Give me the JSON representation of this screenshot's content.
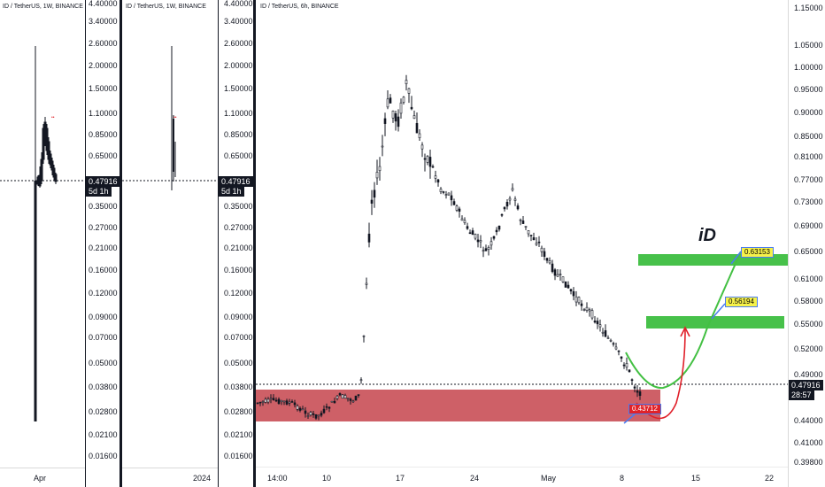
{
  "panes": [
    {
      "symbol": "ID / TetherUS, 1W, BINANCE",
      "price_badge": "0.47916",
      "countdown": "5d 1h",
      "axis": [
        "4.40000",
        "3.40000",
        "2.60000",
        "2.00000",
        "1.50000",
        "1.10000",
        "0.85000",
        "0.65000",
        "0.47916",
        "0.35000",
        "0.27000",
        "0.21000",
        "0.16000",
        "0.12000",
        "0.09000",
        "0.07000",
        "0.05000",
        "0.03800",
        "0.02800",
        "0.02100",
        "0.01600"
      ],
      "xlabels": [
        "Apr"
      ]
    },
    {
      "symbol": "ID / TetherUS, 1W, BINANCE",
      "price_badge": "0.47916",
      "countdown": "5d 1h",
      "axis": [
        "4.40000",
        "3.40000",
        "2.60000",
        "2.00000",
        "1.50000",
        "1.10000",
        "0.85000",
        "0.65000",
        "0.47916",
        "0.35000",
        "0.27000",
        "0.21000",
        "0.16000",
        "0.12000",
        "0.09000",
        "0.07000",
        "0.05000",
        "0.03800",
        "0.02800",
        "0.02100",
        "0.01600"
      ],
      "xlabels": [
        "2024"
      ]
    },
    {
      "symbol": "ID / TetherUS, 6h, BINANCE",
      "price_badge": "0.47916",
      "countdown": "28:57",
      "axis": [
        "1.15000",
        "1.05000",
        "1.00000",
        "0.95000",
        "0.90000",
        "0.85000",
        "0.81000",
        "0.77000",
        "0.73000",
        "0.69000",
        "0.65000",
        "0.61000",
        "0.58000",
        "0.55000",
        "0.52000",
        "0.49000",
        "0.47916",
        "0.44000",
        "0.41000",
        "0.39800"
      ],
      "left_axis": [
        "4.40000",
        "3.40000",
        "2.60000",
        "2.00000",
        "1.50000",
        "1.10000",
        "0.85000",
        "0.65000",
        "0.47916",
        "0.35000",
        "0.27000",
        "0.21000",
        "0.16000",
        "0.12000",
        "0.09000",
        "0.07000",
        "0.05000",
        "0.03800",
        "0.02800",
        "0.02100",
        "0.01600"
      ],
      "xlabels": [
        "14:00",
        "10",
        "17",
        "24",
        "May",
        "8",
        "15",
        "22"
      ]
    }
  ],
  "annotations": {
    "title_text": "iD",
    "target_1": "0.63153",
    "target_2": "0.56194",
    "stop_label": "0.43712"
  },
  "colors": {
    "support_zone": "#c94f57",
    "target_zone": "#47c14a",
    "green_path": "#43c043",
    "red_path": "#e0202a",
    "badge_yellow": "#f6f24a",
    "badge_red": "#e02229",
    "candle": "#131722"
  }
}
